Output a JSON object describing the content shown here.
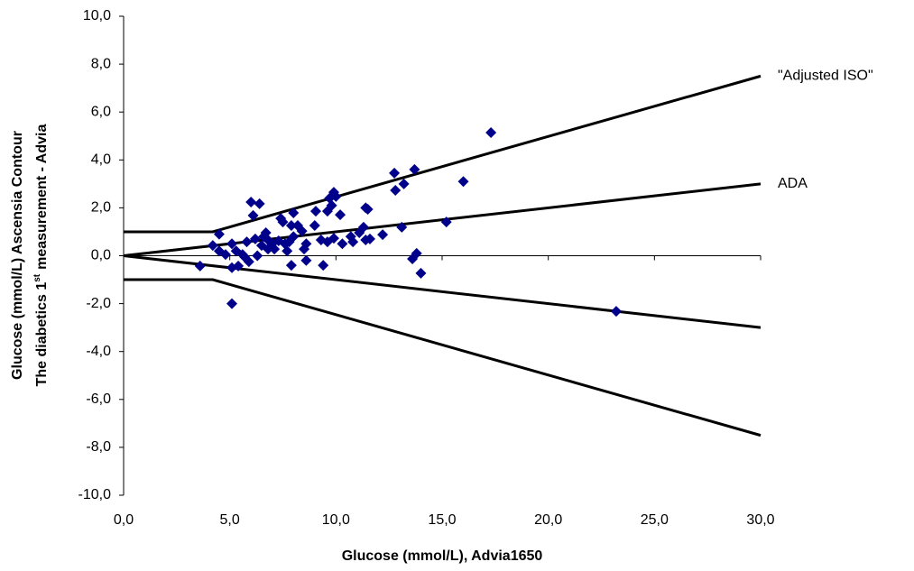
{
  "chart_data": {
    "type": "scatter",
    "xlabel": "Glucose (mmol/L), Advia1650",
    "ylabel": {
      "line1": "Glucose (mmol/L) Ascensia Contour",
      "line2_start": "The diabetics 1",
      "line2_sup": "st",
      "line2_end": "measurement - Advia"
    },
    "xlim": [
      0,
      30
    ],
    "ylim": [
      -10,
      10
    ],
    "xticks": [
      {
        "value": 0,
        "label": "0,0"
      },
      {
        "value": 5,
        "label": "5,0"
      },
      {
        "value": 10,
        "label": "10,0"
      },
      {
        "value": 15,
        "label": "15,0"
      },
      {
        "value": 20,
        "label": "20,0"
      },
      {
        "value": 25,
        "label": "25,0"
      },
      {
        "value": 30,
        "label": "30,0"
      }
    ],
    "yticks": [
      {
        "value": -10,
        "label": "-10,0"
      },
      {
        "value": -8,
        "label": "-8,0"
      },
      {
        "value": -6,
        "label": "-6,0"
      },
      {
        "value": -4,
        "label": "-4,0"
      },
      {
        "value": -2,
        "label": "-2,0"
      },
      {
        "value": 0,
        "label": "0,0"
      },
      {
        "value": 2,
        "label": "2,0"
      },
      {
        "value": 4,
        "label": "4,0"
      },
      {
        "value": 6,
        "label": "6,0"
      },
      {
        "value": 8,
        "label": "8,0"
      },
      {
        "value": 10,
        "label": "10,0"
      }
    ],
    "color": "#00008b",
    "x": [
      3.6,
      4.2,
      4.5,
      4.5,
      4.8,
      5.1,
      5.1,
      5.1,
      5.3,
      5.4,
      5.6,
      5.7,
      5.8,
      5.9,
      6.0,
      6.1,
      6.2,
      6.3,
      6.4,
      6.5,
      6.6,
      6.7,
      6.8,
      6.8,
      7.0,
      7.1,
      7.3,
      7.4,
      7.5,
      7.6,
      7.7,
      7.8,
      7.9,
      7.9,
      8.0,
      8.0,
      8.2,
      8.4,
      8.5,
      8.6,
      8.6,
      9.0,
      9.05,
      9.3,
      9.4,
      9.6,
      9.6,
      9.7,
      9.8,
      9.9,
      9.9,
      10.0,
      10.2,
      10.3,
      10.7,
      10.8,
      11.1,
      11.3,
      11.4,
      11.4,
      11.5,
      11.6,
      12.2,
      12.75,
      12.8,
      13.1,
      13.2,
      13.6,
      13.7,
      13.8,
      14.0,
      15.2,
      16.0,
      17.3,
      23.2
    ],
    "values": [
      -0.43,
      0.43,
      0.9,
      0.2,
      0.05,
      0.5,
      -0.5,
      -2.0,
      0.2,
      -0.43,
      0.05,
      -0.05,
      0.58,
      -0.25,
      2.24,
      1.68,
      0.7,
      0.0,
      2.17,
      0.43,
      0.8,
      0.96,
      0.28,
      0.66,
      0.5,
      0.28,
      0.62,
      1.56,
      1.41,
      0.5,
      0.2,
      0.58,
      1.26,
      -0.4,
      0.8,
      1.79,
      1.26,
      1.03,
      0.28,
      -0.2,
      0.5,
      1.26,
      1.86,
      0.66,
      -0.4,
      1.86,
      0.58,
      2.4,
      2.1,
      2.65,
      0.73,
      2.47,
      1.71,
      0.5,
      0.8,
      0.58,
      0.96,
      1.19,
      2.0,
      0.66,
      1.94,
      0.7,
      0.88,
      3.45,
      2.73,
      1.19,
      3.0,
      -0.13,
      3.6,
      0.1,
      -0.73,
      1.41,
      3.1,
      5.14,
      -2.32
    ],
    "reference_lines": [
      {
        "label": "\"Adjusted ISO\"",
        "x": [
          0,
          4.2,
          30
        ],
        "y": [
          1,
          1,
          7.5
        ]
      },
      {
        "label": "ADA",
        "x": [
          0,
          30
        ],
        "y": [
          0,
          3
        ]
      },
      {
        "x": [
          0,
          30
        ],
        "y": [
          0,
          -3
        ]
      },
      {
        "x": [
          0,
          4.2,
          30
        ],
        "y": [
          -1,
          -1,
          -7.5
        ]
      }
    ],
    "line_color": "#000000"
  }
}
